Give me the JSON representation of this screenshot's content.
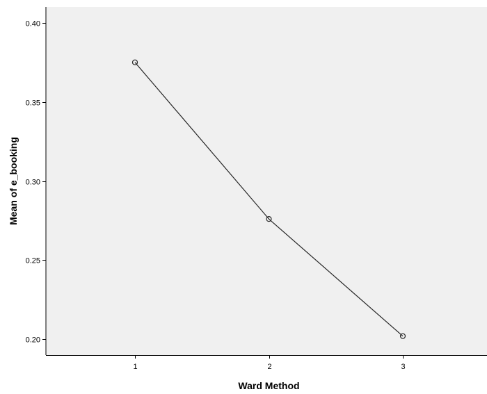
{
  "chart_data": {
    "type": "line",
    "title": "",
    "xlabel": "Ward Method",
    "ylabel": "Mean of e_booking",
    "categories": [
      "1",
      "2",
      "3"
    ],
    "series": [
      {
        "values": [
          0.375,
          0.276,
          0.202
        ],
        "color": "#262626",
        "marker": "open-circle"
      }
    ],
    "ylim": [
      0.19,
      0.41
    ],
    "yticks": [
      0.2,
      0.25,
      0.3,
      0.35,
      0.4
    ],
    "ytick_labels": [
      "0.20",
      "0.25",
      "0.30",
      "0.35",
      "0.40"
    ],
    "grid": false,
    "legend": "none",
    "plot_background": "#f0f0f0",
    "axis_color": "#000000"
  }
}
